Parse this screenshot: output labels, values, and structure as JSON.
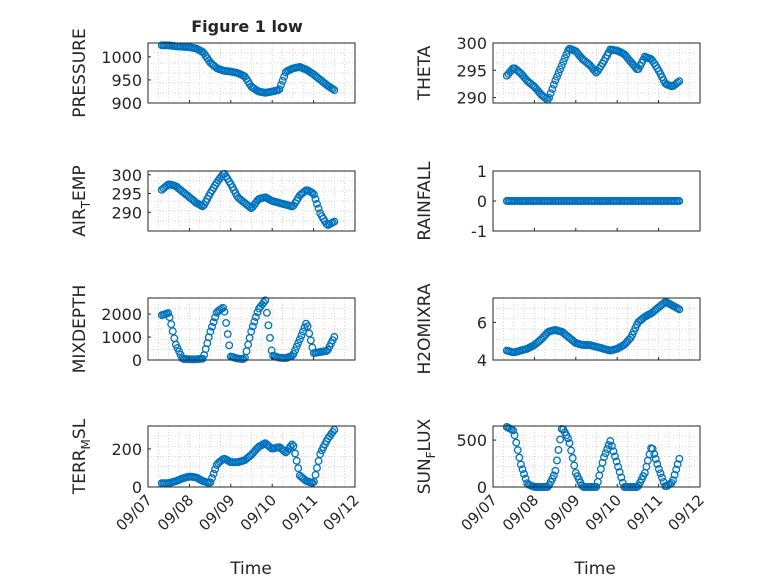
{
  "figure": {
    "title": "Figure 1 low",
    "xlabel": "Time",
    "marker_color": "#0072BD"
  },
  "x_ticks": [
    "09/07",
    "09/08",
    "09/09",
    "09/10",
    "09/11",
    "09/12"
  ],
  "chart_data": [
    {
      "type": "scatter",
      "ylabel": "PRESSURE",
      "ylim": [
        900,
        1030
      ],
      "yticks": [
        900,
        950,
        1000
      ],
      "grid": true,
      "x": [
        "09/07 08:00",
        "09/07 12:00",
        "09/07 16:00",
        "09/07 20:00",
        "09/08 00:00",
        "09/08 04:00",
        "09/08 08:00",
        "09/08 12:00",
        "09/08 16:00",
        "09/08 20:00",
        "09/09 00:00",
        "09/09 04:00",
        "09/09 08:00",
        "09/09 12:00",
        "09/09 16:00",
        "09/09 20:00",
        "09/10 00:00",
        "09/10 04:00",
        "09/10 08:00",
        "09/10 12:00",
        "09/10 16:00",
        "09/10 20:00",
        "09/11 00:00",
        "09/11 04:00",
        "09/11 08:00",
        "09/11 12:00"
      ],
      "values": [
        1025,
        1025,
        1023,
        1022,
        1021,
        1018,
        1010,
        988,
        975,
        970,
        968,
        965,
        958,
        935,
        925,
        922,
        925,
        928,
        968,
        975,
        978,
        972,
        962,
        950,
        938,
        928
      ]
    },
    {
      "type": "scatter",
      "ylabel": "THETA",
      "ylim": [
        289,
        300
      ],
      "yticks": [
        290,
        295,
        300
      ],
      "grid": true,
      "x": [
        "09/07 08:00",
        "09/07 12:00",
        "09/07 16:00",
        "09/07 20:00",
        "09/08 00:00",
        "09/08 04:00",
        "09/08 08:00",
        "09/08 12:00",
        "09/08 16:00",
        "09/08 20:00",
        "09/09 00:00",
        "09/09 04:00",
        "09/09 08:00",
        "09/09 12:00",
        "09/09 16:00",
        "09/09 20:00",
        "09/10 00:00",
        "09/10 04:00",
        "09/10 08:00",
        "09/10 12:00",
        "09/10 16:00",
        "09/10 20:00",
        "09/11 00:00",
        "09/11 04:00",
        "09/11 08:00",
        "09/11 12:00"
      ],
      "values": [
        294,
        295.5,
        294.5,
        293,
        292,
        290.5,
        289.5,
        293,
        296,
        299,
        298.5,
        297,
        296,
        294.5,
        296.5,
        298.8,
        298.6,
        298,
        296.5,
        295,
        297.5,
        297,
        295,
        292.5,
        292,
        293
      ]
    },
    {
      "type": "scatter",
      "ylabel": "AIR_TEMP",
      "ylim": [
        285,
        301
      ],
      "yticks": [
        290,
        295,
        300
      ],
      "grid": true,
      "x": [
        "09/07 08:00",
        "09/07 12:00",
        "09/07 16:00",
        "09/07 20:00",
        "09/08 00:00",
        "09/08 04:00",
        "09/08 08:00",
        "09/08 12:00",
        "09/08 16:00",
        "09/08 20:00",
        "09/09 00:00",
        "09/09 04:00",
        "09/09 08:00",
        "09/09 12:00",
        "09/09 16:00",
        "09/09 20:00",
        "09/10 00:00",
        "09/10 04:00",
        "09/10 08:00",
        "09/10 12:00",
        "09/10 16:00",
        "09/10 20:00",
        "09/11 00:00",
        "09/11 04:00",
        "09/11 08:00",
        "09/11 12:00"
      ],
      "values": [
        296,
        297.5,
        297,
        295.5,
        294,
        292.5,
        291.5,
        295,
        298,
        300.5,
        297.5,
        294,
        292.5,
        291,
        293.5,
        294,
        293,
        292.5,
        292,
        291.5,
        294.5,
        296,
        295,
        289.5,
        286.5,
        287.5
      ]
    },
    {
      "type": "scatter",
      "ylabel": "RAINFALL",
      "ylim": [
        -1,
        1
      ],
      "yticks": [
        -1,
        0,
        1
      ],
      "grid": false,
      "x": [
        "09/07 08:00",
        "09/07 12:00",
        "09/07 16:00",
        "09/07 20:00",
        "09/08 00:00",
        "09/08 04:00",
        "09/08 08:00",
        "09/08 12:00",
        "09/08 16:00",
        "09/08 20:00",
        "09/09 00:00",
        "09/09 04:00",
        "09/09 08:00",
        "09/09 12:00",
        "09/09 16:00",
        "09/09 20:00",
        "09/10 00:00",
        "09/10 04:00",
        "09/10 08:00",
        "09/10 12:00",
        "09/10 16:00",
        "09/10 20:00",
        "09/11 00:00",
        "09/11 04:00",
        "09/11 08:00",
        "09/11 12:00"
      ],
      "values": [
        0,
        0,
        0,
        0,
        0,
        0,
        0,
        0,
        0,
        0,
        0,
        0,
        0,
        0,
        0,
        0,
        0,
        0,
        0,
        0,
        0,
        0,
        0,
        0,
        0,
        0
      ]
    },
    {
      "type": "scatter",
      "ylabel": "MIXDEPTH",
      "ylim": [
        0,
        2700
      ],
      "yticks": [
        0,
        1000,
        2000
      ],
      "grid": true,
      "x": [
        "09/07 08:00",
        "09/07 12:00",
        "09/07 16:00",
        "09/07 20:00",
        "09/08 00:00",
        "09/08 04:00",
        "09/08 08:00",
        "09/08 12:00",
        "09/08 16:00",
        "09/08 20:00",
        "09/09 00:00",
        "09/09 04:00",
        "09/09 08:00",
        "09/09 12:00",
        "09/09 16:00",
        "09/09 20:00",
        "09/10 00:00",
        "09/10 04:00",
        "09/10 08:00",
        "09/10 12:00",
        "09/10 16:00",
        "09/10 20:00",
        "09/11 00:00",
        "09/11 04:00",
        "09/11 08:00",
        "09/11 12:00"
      ],
      "values": [
        1950,
        2050,
        700,
        50,
        30,
        30,
        60,
        1200,
        2100,
        2300,
        150,
        60,
        40,
        1300,
        2200,
        2600,
        200,
        100,
        80,
        200,
        900,
        1650,
        300,
        350,
        400,
        1000
      ]
    },
    {
      "type": "scatter",
      "ylabel": "H2OMIXRA",
      "ylim": [
        4,
        7.3
      ],
      "yticks": [
        4,
        6
      ],
      "grid": true,
      "x": [
        "09/07 08:00",
        "09/07 12:00",
        "09/07 16:00",
        "09/07 20:00",
        "09/08 00:00",
        "09/08 04:00",
        "09/08 08:00",
        "09/08 12:00",
        "09/08 16:00",
        "09/08 20:00",
        "09/09 00:00",
        "09/09 04:00",
        "09/09 08:00",
        "09/09 12:00",
        "09/09 16:00",
        "09/09 20:00",
        "09/10 00:00",
        "09/10 04:00",
        "09/10 08:00",
        "09/10 12:00",
        "09/10 16:00",
        "09/10 20:00",
        "09/11 00:00",
        "09/11 04:00",
        "09/11 08:00",
        "09/11 12:00"
      ],
      "values": [
        4.5,
        4.4,
        4.5,
        4.6,
        4.8,
        5.1,
        5.5,
        5.6,
        5.5,
        5.2,
        4.9,
        4.8,
        4.8,
        4.7,
        4.6,
        4.5,
        4.6,
        4.8,
        5.2,
        6.0,
        6.3,
        6.5,
        6.8,
        7.1,
        6.9,
        6.7
      ]
    },
    {
      "type": "scatter",
      "ylabel": "TERR_MSL",
      "ylim": [
        0,
        320
      ],
      "yticks": [
        0,
        200
      ],
      "grid": true,
      "x": [
        "09/07 08:00",
        "09/07 12:00",
        "09/07 16:00",
        "09/07 20:00",
        "09/08 00:00",
        "09/08 04:00",
        "09/08 08:00",
        "09/08 12:00",
        "09/08 16:00",
        "09/08 20:00",
        "09/09 00:00",
        "09/09 04:00",
        "09/09 08:00",
        "09/09 12:00",
        "09/09 16:00",
        "09/09 20:00",
        "09/10 00:00",
        "09/10 04:00",
        "09/10 08:00",
        "09/10 12:00",
        "09/10 16:00",
        "09/10 20:00",
        "09/11 00:00",
        "09/11 04:00",
        "09/11 08:00",
        "09/11 12:00"
      ],
      "values": [
        20,
        20,
        30,
        45,
        55,
        50,
        30,
        20,
        120,
        150,
        130,
        130,
        140,
        170,
        210,
        230,
        200,
        210,
        180,
        230,
        60,
        30,
        20,
        180,
        250,
        300
      ]
    },
    {
      "type": "scatter",
      "ylabel": "SUN_FLUX",
      "ylim": [
        0,
        650
      ],
      "yticks": [
        0,
        500
      ],
      "grid": true,
      "x": [
        "09/07 08:00",
        "09/07 12:00",
        "09/07 16:00",
        "09/07 20:00",
        "09/08 00:00",
        "09/08 04:00",
        "09/08 08:00",
        "09/08 12:00",
        "09/08 16:00",
        "09/08 20:00",
        "09/09 00:00",
        "09/09 04:00",
        "09/09 08:00",
        "09/09 12:00",
        "09/09 16:00",
        "09/09 20:00",
        "09/10 00:00",
        "09/10 04:00",
        "09/10 08:00",
        "09/10 12:00",
        "09/10 16:00",
        "09/10 20:00",
        "09/11 00:00",
        "09/11 04:00",
        "09/11 08:00",
        "09/11 12:00"
      ],
      "values": [
        640,
        600,
        250,
        30,
        0,
        0,
        0,
        150,
        640,
        500,
        150,
        0,
        0,
        0,
        300,
        490,
        250,
        0,
        0,
        0,
        150,
        440,
        200,
        0,
        50,
        300
      ]
    }
  ]
}
